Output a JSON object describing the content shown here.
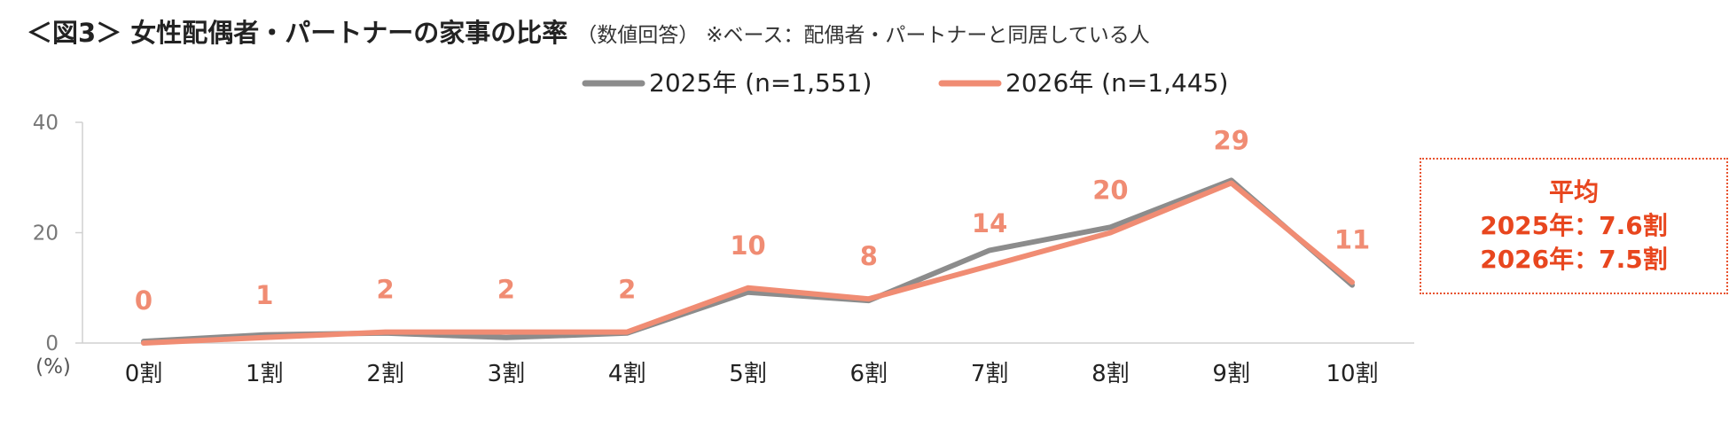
{
  "title": {
    "main": "＜図3＞ 女性配偶者・パートナーの家事の比率",
    "sub": "（数値回答）",
    "base": "※ベース：配偶者・パートナーと同居している人"
  },
  "average_box": {
    "heading": "平均",
    "line_2025": "2025年：7.6割",
    "line_2026": "2026年：7.5割"
  },
  "colors": {
    "series_2025": "#8C8C8C",
    "series_2026": "#F08C73",
    "data_label": "#F08C73",
    "accent": "#E8461E"
  },
  "chart_data": {
    "type": "line",
    "categories": [
      "0割",
      "1割",
      "2割",
      "3割",
      "4割",
      "5割",
      "6割",
      "7割",
      "8割",
      "9割",
      "10割"
    ],
    "series": [
      {
        "name": "2025年 (n=1,551)",
        "values": [
          0.3,
          1.5,
          1.8,
          1.0,
          1.8,
          9.2,
          7.7,
          16.8,
          21.0,
          29.5,
          10.5
        ]
      },
      {
        "name": "2026年 (n=1,445)",
        "values": [
          0,
          1,
          2,
          2,
          2,
          10,
          8,
          14,
          20,
          29,
          11
        ]
      }
    ],
    "data_labels": [
      "0",
      "1",
      "2",
      "2",
      "2",
      "10",
      "8",
      "14",
      "20",
      "29",
      "11"
    ],
    "yticks": [
      "0",
      "20",
      "40"
    ],
    "ylabel": "(%)",
    "ylim": [
      0,
      40
    ],
    "legend_position": "top-center",
    "grid": false
  }
}
